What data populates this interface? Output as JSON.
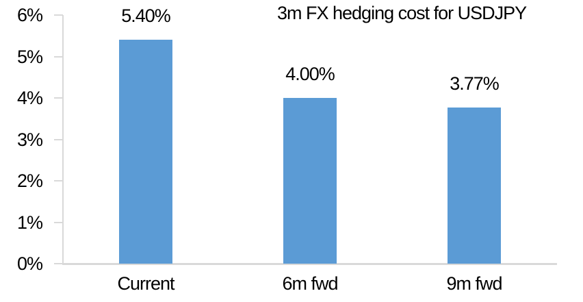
{
  "colors": {
    "background": "#FFFFFF",
    "bar": "#5B9BD5",
    "axis": "#D9D9D9",
    "text": "#000000"
  },
  "chart_data": {
    "type": "bar",
    "title": "3m FX hedging cost for USDJPY",
    "categories": [
      "Current",
      "6m fwd",
      "9m fwd"
    ],
    "values": [
      5.4,
      4.0,
      3.77
    ],
    "data_labels": [
      "5.40%",
      "4.00%",
      "3.77%"
    ],
    "xlabel": "",
    "ylabel": "",
    "ylim": [
      0,
      6
    ],
    "y_tick_interval": 1,
    "y_tick_labels": [
      "0%",
      "1%",
      "2%",
      "3%",
      "4%",
      "5%",
      "6%"
    ],
    "grid": false,
    "legend": "none"
  }
}
